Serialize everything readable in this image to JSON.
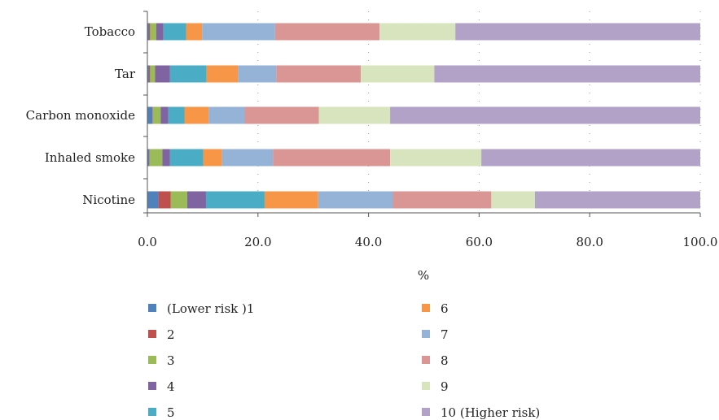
{
  "chart_data": {
    "type": "bar",
    "orientation": "horizontal",
    "stacked": true,
    "categories": [
      "Tobacco",
      "Tar",
      "Carbon monoxide",
      "Inhaled smoke",
      "Nicotine"
    ],
    "xlabel": "%",
    "ylabel": "",
    "xlim": [
      0,
      100
    ],
    "xticks": [
      "0.0",
      "20.0",
      "40.0",
      "60.0",
      "80.0",
      "100.0"
    ],
    "grid": "vertical dotted",
    "legend_position": "bottom",
    "series": [
      {
        "name": "(Lower risk )1",
        "color": "#4f81bd",
        "values": [
          0.3,
          0.3,
          0.9,
          0.3,
          2.0
        ]
      },
      {
        "name": "2",
        "color": "#c0504d",
        "values": [
          0.2,
          0.2,
          0.1,
          0.1,
          2.2
        ]
      },
      {
        "name": "3",
        "color": "#9bbb59",
        "values": [
          1.1,
          0.9,
          1.4,
          2.3,
          3.0
        ]
      },
      {
        "name": "4",
        "color": "#8064a2",
        "values": [
          1.3,
          2.7,
          1.4,
          1.4,
          3.4
        ]
      },
      {
        "name": "5",
        "color": "#4bacc6",
        "values": [
          4.1,
          6.6,
          2.9,
          6.0,
          10.6
        ]
      },
      {
        "name": "6",
        "color": "#f79646",
        "values": [
          2.9,
          5.7,
          4.4,
          3.4,
          9.7
        ]
      },
      {
        "name": "7",
        "color": "#95b3d7",
        "values": [
          13.2,
          6.9,
          6.5,
          9.2,
          13.5
        ]
      },
      {
        "name": "8",
        "color": "#da9694",
        "values": [
          18.9,
          15.3,
          13.4,
          21.2,
          17.8
        ]
      },
      {
        "name": "9",
        "color": "#d7e4bd",
        "values": [
          13.7,
          13.3,
          12.9,
          16.5,
          7.9
        ]
      },
      {
        "name": "10 (Higher risk)",
        "color": "#b3a2c7",
        "values": [
          44.3,
          48.1,
          56.1,
          39.6,
          29.9
        ]
      }
    ]
  }
}
